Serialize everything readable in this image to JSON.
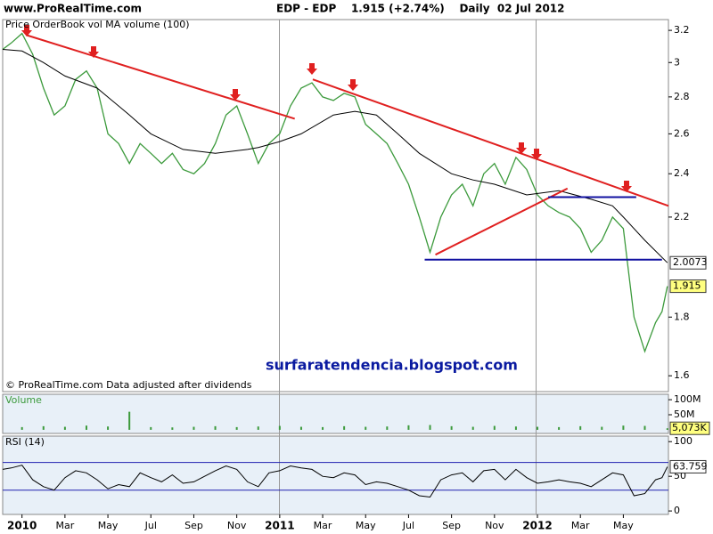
{
  "header": {
    "site": "www.ProRealTime.com",
    "title": "EDP - EDP    1.915 (+2.74%)    Daily  02 Jul 2012"
  },
  "chart_data": [
    {
      "type": "line",
      "subtitle": "Price OrderBook vol MA volume (100)",
      "note": "© ProRealTime.com Data adjusted after dividends",
      "annotation": "surfaratendencia.blogspot.com",
      "log": true,
      "xlim": [
        -0.9,
        30.1
      ],
      "ylim": [
        1.55,
        3.27
      ],
      "yticks": [
        3.2,
        3,
        2.8,
        2.6,
        2.4,
        2.2,
        1.8,
        1.6
      ],
      "series": [
        {
          "color": "#3c9a3c",
          "label_color": "#ffff80",
          "x": [
            -0.9,
            -0.5,
            0,
            0.5,
            1,
            1.5,
            2,
            2.5,
            3,
            3.5,
            4,
            4.5,
            5,
            5.5,
            6,
            6.5,
            7,
            7.5,
            8,
            8.5,
            9,
            9.5,
            10,
            10.5,
            11,
            11.5,
            12,
            12.5,
            13,
            13.5,
            14,
            14.5,
            15,
            15.5,
            16,
            16.5,
            17,
            17.5,
            18,
            18.5,
            19,
            19.5,
            20,
            20.5,
            21,
            21.5,
            22,
            22.5,
            23,
            23.5,
            24,
            24.5,
            25,
            25.5,
            26,
            26.5,
            27,
            27.5,
            28,
            28.5,
            29,
            29.5,
            29.8,
            30.05
          ],
          "values": [
            3.08,
            3.12,
            3.18,
            3.05,
            2.85,
            2.7,
            2.75,
            2.9,
            2.95,
            2.85,
            2.6,
            2.55,
            2.45,
            2.55,
            2.5,
            2.45,
            2.5,
            2.42,
            2.4,
            2.45,
            2.55,
            2.7,
            2.75,
            2.6,
            2.45,
            2.55,
            2.6,
            2.75,
            2.85,
            2.88,
            2.8,
            2.78,
            2.82,
            2.8,
            2.65,
            2.6,
            2.55,
            2.45,
            2.35,
            2.2,
            2.05,
            2.2,
            2.3,
            2.35,
            2.25,
            2.4,
            2.45,
            2.35,
            2.48,
            2.42,
            2.3,
            2.25,
            2.22,
            2.2,
            2.15,
            2.05,
            2.1,
            2.2,
            2.15,
            1.8,
            1.68,
            1.78,
            1.82,
            1.915
          ]
        },
        {
          "color": "#000000",
          "label_color": "#ffffff",
          "x": [
            -0.9,
            0,
            1,
            2,
            3.5,
            5,
            6,
            7.5,
            9,
            10.5,
            11,
            12,
            13,
            14.5,
            15.5,
            16.5,
            17.5,
            18.5,
            20,
            21,
            22,
            23.5,
            25,
            26.5,
            27.5,
            28,
            29,
            30.05
          ],
          "values": [
            3.08,
            3.07,
            3.0,
            2.92,
            2.85,
            2.7,
            2.6,
            2.52,
            2.5,
            2.52,
            2.53,
            2.56,
            2.6,
            2.7,
            2.72,
            2.7,
            2.6,
            2.5,
            2.4,
            2.37,
            2.35,
            2.3,
            2.32,
            2.28,
            2.25,
            2.2,
            2.1,
            2.0073
          ]
        }
      ],
      "trendlines": [
        {
          "color": "#e02020",
          "x": [
            0.2,
            12.7
          ],
          "values": [
            3.17,
            2.68
          ]
        },
        {
          "color": "#e02020",
          "x": [
            13.54,
            30.1
          ],
          "values": [
            2.9,
            2.25
          ]
        },
        {
          "color": "#e02020",
          "x": [
            19.25,
            25.4
          ],
          "values": [
            2.04,
            2.33
          ]
        },
        {
          "color": "#1010a0",
          "x": [
            18.75,
            29.8
          ],
          "values": [
            2.02,
            2.02
          ]
        },
        {
          "color": "#1010a0",
          "x": [
            24.5,
            28.6
          ],
          "values": [
            2.29,
            2.29
          ]
        }
      ]
    },
    {
      "type": "bar",
      "title": "Volume",
      "color": "#3c9a3c",
      "label_color": "#ffff80",
      "xlim": [
        -0.9,
        30.1
      ],
      "ylim": [
        -12000000,
        118000000
      ],
      "yticks": [
        {
          "value": 100000000,
          "label": "100M"
        },
        {
          "value": 50000000,
          "label": "50M"
        }
      ],
      "x": [
        0,
        1,
        2,
        3,
        4,
        5,
        6,
        7,
        8,
        9,
        10,
        11,
        12,
        13,
        14,
        15,
        16,
        17,
        18,
        19,
        20,
        21,
        22,
        23,
        24,
        25,
        26,
        27,
        28,
        29,
        30.05
      ],
      "values": [
        9000000,
        12000000,
        10000000,
        14000000,
        11000000,
        60000000,
        9000000,
        8000000,
        10000000,
        12000000,
        9000000,
        11000000,
        13000000,
        10000000,
        9000000,
        12000000,
        10000000,
        11000000,
        15000000,
        16000000,
        12000000,
        10000000,
        13000000,
        11000000,
        10000000,
        9000000,
        12000000,
        10000000,
        14000000,
        13000000,
        5073000
      ],
      "value_labels": [
        null,
        null,
        null,
        null,
        null,
        null,
        null,
        null,
        null,
        null,
        null,
        null,
        null,
        null,
        null,
        null,
        null,
        null,
        null,
        null,
        null,
        null,
        null,
        null,
        null,
        null,
        null,
        null,
        null,
        null,
        "5,073K"
      ]
    },
    {
      "type": "line",
      "title": "RSI (14)",
      "color": "#000000",
      "label_color": "#ffffff",
      "band_color": "#2020b0",
      "bands": [
        70,
        30
      ],
      "xlim": [
        -0.9,
        30.1
      ],
      "ylim": [
        -5,
        108
      ],
      "yticks": [
        100,
        50,
        0
      ],
      "xticks": [
        {
          "value": 0,
          "label": "2010"
        },
        {
          "value": 2,
          "label": "Mar"
        },
        {
          "value": 4,
          "label": "May"
        },
        {
          "value": 6,
          "label": "Jul"
        },
        {
          "value": 8,
          "label": "Sep"
        },
        {
          "value": 10,
          "label": "Nov"
        },
        {
          "value": 12,
          "label": "2011"
        },
        {
          "value": 14,
          "label": "Mar"
        },
        {
          "value": 16,
          "label": "May"
        },
        {
          "value": 18,
          "label": "Jul"
        },
        {
          "value": 20,
          "label": "Sep"
        },
        {
          "value": 22,
          "label": "Nov"
        },
        {
          "value": 24,
          "label": "2012"
        },
        {
          "value": 26,
          "label": "Mar"
        },
        {
          "value": 28,
          "label": "May"
        }
      ],
      "x": [
        -0.9,
        -0.5,
        0,
        0.5,
        1,
        1.5,
        2,
        2.5,
        3,
        3.5,
        4,
        4.5,
        5,
        5.5,
        6,
        6.5,
        7,
        7.5,
        8,
        8.5,
        9,
        9.5,
        10,
        10.5,
        11,
        11.5,
        12,
        12.5,
        13,
        13.5,
        14,
        14.5,
        15,
        15.5,
        16,
        16.5,
        17,
        17.5,
        18,
        18.5,
        19,
        19.5,
        20,
        20.5,
        21,
        21.5,
        22,
        22.5,
        23,
        23.5,
        24,
        24.5,
        25,
        25.5,
        26,
        26.5,
        27,
        27.5,
        28,
        28.5,
        29,
        29.5,
        29.8,
        30.05
      ],
      "values": [
        60,
        62,
        66,
        45,
        35,
        30,
        48,
        58,
        55,
        45,
        32,
        38,
        35,
        55,
        48,
        42,
        52,
        40,
        42,
        50,
        58,
        65,
        60,
        42,
        35,
        55,
        58,
        65,
        62,
        60,
        50,
        48,
        55,
        52,
        38,
        42,
        40,
        35,
        30,
        22,
        20,
        45,
        52,
        55,
        42,
        58,
        60,
        45,
        60,
        48,
        40,
        42,
        45,
        42,
        40,
        35,
        45,
        55,
        52,
        22,
        25,
        45,
        48,
        63.759
      ]
    }
  ]
}
